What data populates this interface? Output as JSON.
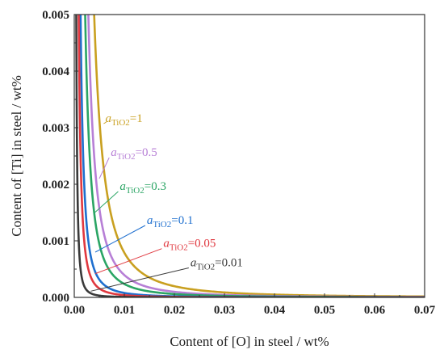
{
  "chart_data": {
    "type": "line",
    "xlabel": "Content of [O] in steel / wt%",
    "ylabel": "Content of [Ti] in steel / wt%",
    "xlim": [
      0,
      0.07
    ],
    "ylim": [
      0,
      0.005
    ],
    "xticks": [
      "0.00",
      "0.01",
      "0.02",
      "0.03",
      "0.04",
      "0.05",
      "0.06",
      "0.07"
    ],
    "yticks": [
      "0.000",
      "0.001",
      "0.002",
      "0.003",
      "0.004",
      "0.005"
    ],
    "grid": false,
    "legend": "none",
    "curve_model": "Ti * O^2 = K * a_TiO2",
    "series": [
      {
        "label_symbol": "a",
        "label_subscript": "TiO2",
        "label_value": "=1",
        "a_TiO2": 1,
        "color": "#c9a020",
        "K": 7.9e-08,
        "label_at": [
          0.0062,
          0.0031
        ],
        "arrow_to": [
          0.0064,
          0.0031
        ]
      },
      {
        "label_symbol": "a",
        "label_subscript": "TiO2",
        "label_value": "=0.5",
        "a_TiO2": 0.5,
        "color": "#b77fd6",
        "K": 7.9e-08,
        "label_at": [
          0.0073,
          0.0025
        ],
        "arrow_to": [
          0.005,
          0.0021
        ]
      },
      {
        "label_symbol": "a",
        "label_subscript": "TiO2",
        "label_value": "=0.3",
        "a_TiO2": 0.3,
        "color": "#2aa564",
        "K": 7.9e-08,
        "label_at": [
          0.0091,
          0.0019
        ],
        "arrow_to": [
          0.0041,
          0.0015
        ]
      },
      {
        "label_symbol": "a",
        "label_subscript": "TiO2",
        "label_value": "=0.1",
        "a_TiO2": 0.1,
        "color": "#1e6fcf",
        "K": 7.9e-08,
        "label_at": [
          0.0145,
          0.0013
        ],
        "arrow_to": [
          0.0042,
          0.0008
        ]
      },
      {
        "label_symbol": "a",
        "label_subscript": "TiO2",
        "label_value": "=0.05",
        "a_TiO2": 0.05,
        "color": "#e0383f",
        "K": 7.9e-08,
        "label_at": [
          0.0178,
          0.00089
        ],
        "arrow_to": [
          0.0042,
          0.00042
        ]
      },
      {
        "label_symbol": "a",
        "label_subscript": "TiO2",
        "label_value": "=0.01",
        "a_TiO2": 0.01,
        "color": "#3a3a3a",
        "K": 7.9e-08,
        "label_at": [
          0.0232,
          0.00055
        ],
        "arrow_to": [
          0.0033,
          0.00011
        ]
      }
    ]
  }
}
